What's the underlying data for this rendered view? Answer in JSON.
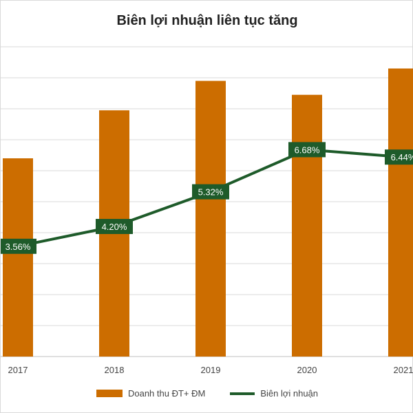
{
  "chart_data": {
    "type": "bar+line",
    "title": "Biên lợi nhuận liên tục tăng",
    "categories": [
      "2017",
      "2018",
      "2019",
      "2020",
      "2021"
    ],
    "series": [
      {
        "name": "Doanh thu ĐT+ ĐM",
        "type": "bar",
        "color": "#cc6d00",
        "values": [
          6.4,
          7.95,
          8.9,
          8.45,
          9.3
        ]
      },
      {
        "name": "Biên lợi nhuận",
        "type": "line",
        "color": "#1e5b2a",
        "values": [
          3.56,
          4.2,
          5.32,
          6.68,
          6.44
        ],
        "labels": [
          "3.56%",
          "4.20%",
          "5.32%",
          "6.68%",
          "6.44%"
        ]
      }
    ],
    "y_left": [
      0,
      10
    ],
    "y_right": [
      0,
      10
    ],
    "grid": true,
    "legend_position": "bottom"
  }
}
